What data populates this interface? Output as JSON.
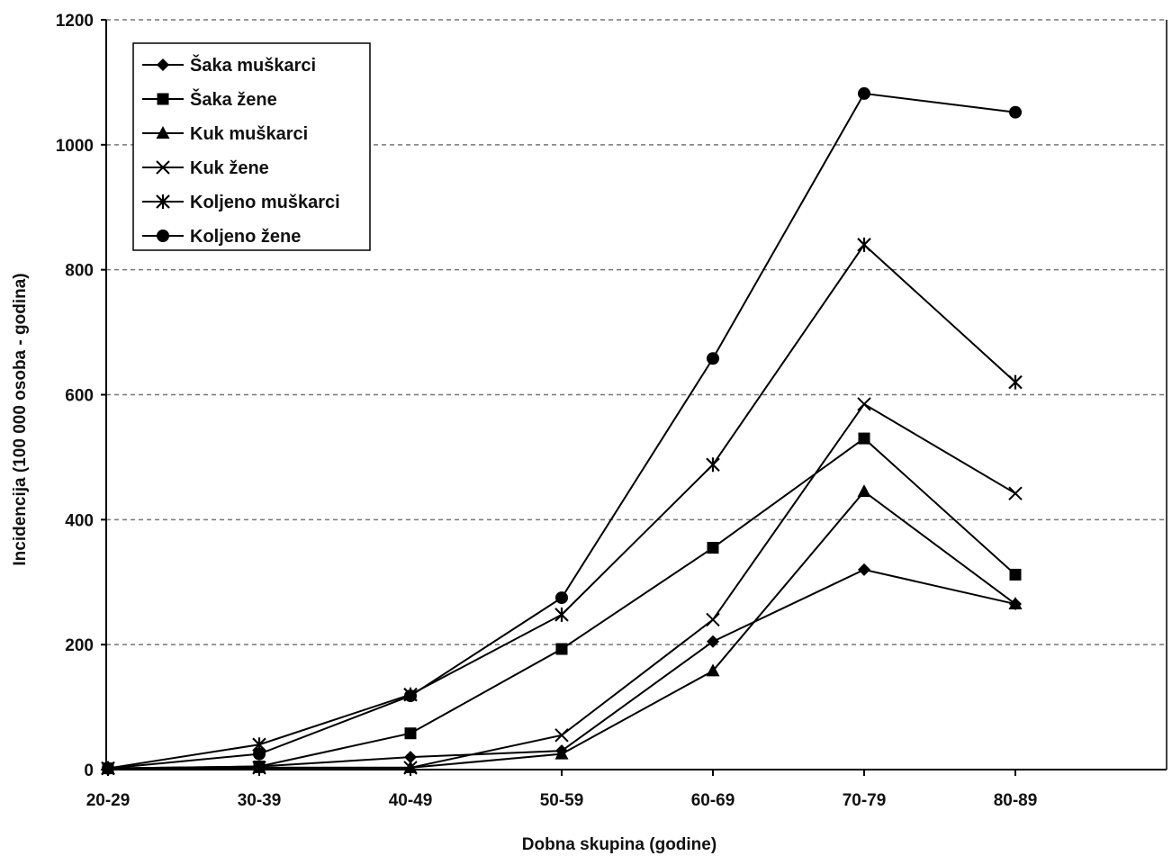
{
  "chart_data": {
    "type": "line",
    "title": "",
    "xlabel": "Dobna skupina (godine)",
    "ylabel": "Incidencija (100 000 osoba - godina)",
    "categories": [
      "20-29",
      "30-39",
      "40-49",
      "50-59",
      "60-69",
      "70-79",
      "80-89"
    ],
    "ylim": [
      0,
      1200
    ],
    "yticks": [
      0,
      200,
      400,
      600,
      800,
      1000,
      1200
    ],
    "grid": "horizontal-dashed",
    "legend_position": "top-left",
    "series": [
      {
        "name": "Šaka muškarci",
        "marker": "diamond",
        "values": [
          2,
          5,
          20,
          30,
          205,
          320,
          265
        ]
      },
      {
        "name": "Šaka žene",
        "marker": "square",
        "values": [
          2,
          5,
          58,
          193,
          355,
          530,
          312
        ]
      },
      {
        "name": "Kuk muškarci",
        "marker": "triangle",
        "values": [
          2,
          3,
          3,
          25,
          158,
          445,
          265
        ]
      },
      {
        "name": "Kuk žene",
        "marker": "x",
        "values": [
          2,
          3,
          3,
          55,
          240,
          585,
          442
        ]
      },
      {
        "name": "Koljeno muškarci",
        "marker": "star",
        "values": [
          2,
          40,
          120,
          248,
          488,
          840,
          620
        ]
      },
      {
        "name": "Koljeno žene",
        "marker": "circle",
        "values": [
          2,
          25,
          118,
          275,
          658,
          1082,
          1052
        ]
      }
    ]
  }
}
